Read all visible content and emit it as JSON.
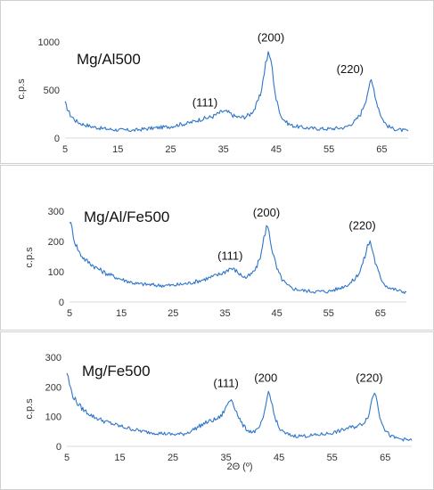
{
  "chart_data": [
    {
      "type": "line",
      "title": "Mg/Al500",
      "ylabel": "c.p.s",
      "xlabel": "",
      "xlim": [
        5,
        70
      ],
      "ylim": [
        0,
        1000
      ],
      "xticks": [
        "5",
        "15",
        "25",
        "35",
        "45",
        "55",
        "65"
      ],
      "xtick_values": [
        5,
        15,
        25,
        35,
        45,
        55,
        65
      ],
      "yticks": [
        "0",
        "500",
        "1000"
      ],
      "ytick_values": [
        0,
        500,
        1000
      ],
      "grid": false,
      "color": "#2e75c9",
      "annotations": [
        {
          "text": "(111)",
          "x": 31.5,
          "y": 330
        },
        {
          "text": "(200)",
          "x": 44.0,
          "y": 1005
        },
        {
          "text": "(220)",
          "x": 59.0,
          "y": 675
        }
      ],
      "series": [
        {
          "x": [
            5,
            6,
            7,
            8,
            10,
            12,
            15,
            18,
            20,
            22,
            25,
            27,
            28,
            29,
            30,
            31,
            32,
            33,
            34,
            35,
            36,
            37,
            38,
            39,
            40,
            41,
            42,
            42.5,
            43,
            43.5,
            44,
            44.5,
            45,
            46,
            47,
            48,
            50,
            52,
            55,
            58,
            59,
            60,
            61,
            62,
            62.5,
            63,
            63.5,
            64,
            65,
            66,
            67,
            68,
            69,
            70
          ],
          "y": [
            360,
            240,
            180,
            150,
            120,
            100,
            85,
            80,
            95,
            105,
            120,
            145,
            150,
            165,
            185,
            200,
            210,
            225,
            255,
            280,
            265,
            230,
            215,
            220,
            245,
            310,
            450,
            600,
            780,
            870,
            820,
            600,
            400,
            220,
            160,
            130,
            110,
            100,
            95,
            110,
            140,
            180,
            250,
            400,
            520,
            590,
            510,
            380,
            210,
            130,
            100,
            90,
            80,
            75
          ]
        }
      ]
    },
    {
      "type": "line",
      "title": "Mg/Al/Fe500",
      "ylabel": "c.p.s",
      "xlabel": "",
      "xlim": [
        5,
        70
      ],
      "ylim": [
        0,
        300
      ],
      "xticks": [
        "5",
        "15",
        "25",
        "35",
        "45",
        "55",
        "65"
      ],
      "xtick_values": [
        5,
        15,
        25,
        35,
        45,
        55,
        65
      ],
      "yticks": [
        "0",
        "100",
        "200",
        "300"
      ],
      "ytick_values": [
        0,
        100,
        200,
        300
      ],
      "grid": false,
      "color": "#2e75c9",
      "annotations": [
        {
          "text": "(111)",
          "x": 36.0,
          "y": 140
        },
        {
          "text": "(200)",
          "x": 43.0,
          "y": 282
        },
        {
          "text": "(220)",
          "x": 61.5,
          "y": 240
        }
      ],
      "series": [
        {
          "x": [
            5,
            5.5,
            6,
            7,
            8,
            10,
            12,
            15,
            18,
            20,
            22,
            25,
            28,
            30,
            32,
            34,
            35,
            36,
            37,
            38,
            39,
            40,
            41,
            42,
            42.5,
            43,
            43.5,
            44,
            45,
            46,
            47,
            48,
            50,
            52,
            55,
            57,
            59,
            60,
            61,
            62,
            62.5,
            63,
            63.5,
            64,
            65,
            66,
            67,
            68,
            69,
            70
          ],
          "y": [
            270,
            240,
            200,
            160,
            140,
            115,
            95,
            75,
            60,
            58,
            55,
            55,
            62,
            70,
            80,
            92,
            100,
            112,
            105,
            90,
            80,
            90,
            110,
            160,
            210,
            250,
            235,
            180,
            110,
            75,
            55,
            45,
            38,
            35,
            35,
            45,
            60,
            75,
            100,
            150,
            185,
            200,
            170,
            130,
            80,
            55,
            45,
            40,
            35,
            33
          ]
        }
      ]
    },
    {
      "type": "line",
      "title": "Mg/Fe500",
      "ylabel": "c.p.s",
      "xlabel": "2Θ (º)",
      "xlim": [
        5,
        70
      ],
      "ylim": [
        0,
        300
      ],
      "xticks": [
        "5",
        "15",
        "25",
        "35",
        "45",
        "55",
        "65"
      ],
      "xtick_values": [
        5,
        15,
        25,
        35,
        45,
        55,
        65
      ],
      "yticks": [
        "0",
        "100",
        "200",
        "300"
      ],
      "ytick_values": [
        0,
        100,
        200,
        300
      ],
      "grid": false,
      "color": "#2e75c9",
      "annotations": [
        {
          "text": "(111)",
          "x": 35.0,
          "y": 200
        },
        {
          "text": "(200",
          "x": 42.5,
          "y": 218
        },
        {
          "text": "(220)",
          "x": 62.0,
          "y": 218
        }
      ],
      "series": [
        {
          "x": [
            5,
            5.5,
            6,
            7,
            8,
            10,
            12,
            15,
            18,
            20,
            22,
            25,
            27,
            28,
            29,
            30,
            31,
            32,
            33,
            34,
            35,
            35.5,
            36,
            36.5,
            37,
            38,
            39,
            40,
            41,
            42,
            42.5,
            43,
            43.5,
            44,
            45,
            46,
            47,
            48,
            50,
            52,
            55,
            57,
            58,
            59,
            60,
            61,
            62,
            62.5,
            63,
            63.5,
            64,
            65,
            66,
            67,
            68,
            69,
            70
          ],
          "y": [
            250,
            210,
            175,
            145,
            125,
            100,
            85,
            68,
            55,
            48,
            45,
            40,
            42,
            48,
            58,
            68,
            78,
            85,
            90,
            100,
            130,
            150,
            160,
            140,
            115,
            75,
            55,
            48,
            55,
            90,
            140,
            185,
            160,
            110,
            60,
            45,
            38,
            35,
            35,
            38,
            45,
            55,
            62,
            65,
            70,
            80,
            110,
            160,
            185,
            150,
            100,
            55,
            35,
            28,
            25,
            22,
            20
          ]
        }
      ]
    }
  ]
}
